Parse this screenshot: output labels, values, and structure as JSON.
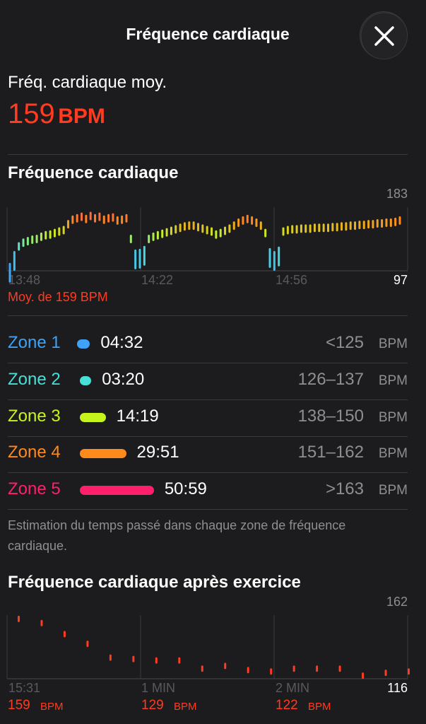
{
  "header": {
    "title": "Fréquence cardiaque"
  },
  "summary": {
    "label": "Fréq. cardiaque moy.",
    "value": "159",
    "unit": "BPM"
  },
  "heart_chart": {
    "type": "bar",
    "title": "Fréquence cardiaque",
    "ylim": [
      97,
      183
    ],
    "yticks": [
      97,
      183
    ],
    "x_labels": [
      "13:48",
      "14:22",
      "14:56"
    ],
    "average_label": "Moy. de 159 BPM",
    "gradient": [
      "#3fa7f5",
      "#4fe0d8",
      "#c6f02a",
      "#ff8a1e",
      "#ff2d7a"
    ],
    "values": [
      102,
      118,
      130,
      135,
      137,
      139,
      140,
      143,
      145,
      146,
      148,
      150,
      152,
      160,
      166,
      168,
      170,
      167,
      171,
      168,
      170,
      166,
      168,
      169,
      165,
      166,
      168,
      140,
      120,
      121,
      125,
      140,
      143,
      145,
      147,
      149,
      151,
      153,
      155,
      157,
      158,
      158,
      156,
      154,
      152,
      150,
      146,
      148,
      151,
      154,
      158,
      162,
      165,
      167,
      165,
      162,
      158,
      148,
      122,
      118,
      124,
      150,
      152,
      153,
      153,
      154,
      154,
      154,
      155,
      155,
      155,
      155,
      156,
      156,
      157,
      157,
      158,
      158,
      159,
      159,
      160,
      160,
      161,
      161,
      162,
      162,
      163,
      165
    ]
  },
  "zones": [
    {
      "name": "Zone 1",
      "color": "#3fa2f7",
      "time": "04:32",
      "range": "<125",
      "unit": "BPM"
    },
    {
      "name": "Zone 2",
      "color": "#46e0d6",
      "time": "03:20",
      "range": "126–137",
      "unit": "BPM"
    },
    {
      "name": "Zone 3",
      "color": "#c6f51c",
      "time": "14:19",
      "range": "138–150",
      "unit": "BPM"
    },
    {
      "name": "Zone 4",
      "color": "#ff8a1c",
      "time": "29:51",
      "range": "151–162",
      "unit": "BPM"
    },
    {
      "name": "Zone 5",
      "color": "#ff1f6b",
      "time": "50:59",
      "range": ">163",
      "unit": "BPM"
    }
  ],
  "zones_note": "Estimation du temps passé dans chaque zone de fréquence cardiaque.",
  "recovery_chart": {
    "type": "scatter",
    "title": "Fréquence cardiaque après exercice",
    "ylim": [
      116,
      162
    ],
    "yticks": [
      116,
      162
    ],
    "color": "#ff3b22",
    "x_labels": [
      "15:31",
      "1 MIN",
      "2 MIN"
    ],
    "values": [
      159,
      156,
      148,
      141,
      131,
      130,
      129,
      129,
      123,
      125,
      122,
      121,
      123,
      123,
      123,
      118,
      120,
      121
    ],
    "readings": [
      {
        "value": "159",
        "unit": "BPM"
      },
      {
        "value": "129",
        "unit": "BPM"
      },
      {
        "value": "122",
        "unit": "BPM"
      }
    ]
  }
}
